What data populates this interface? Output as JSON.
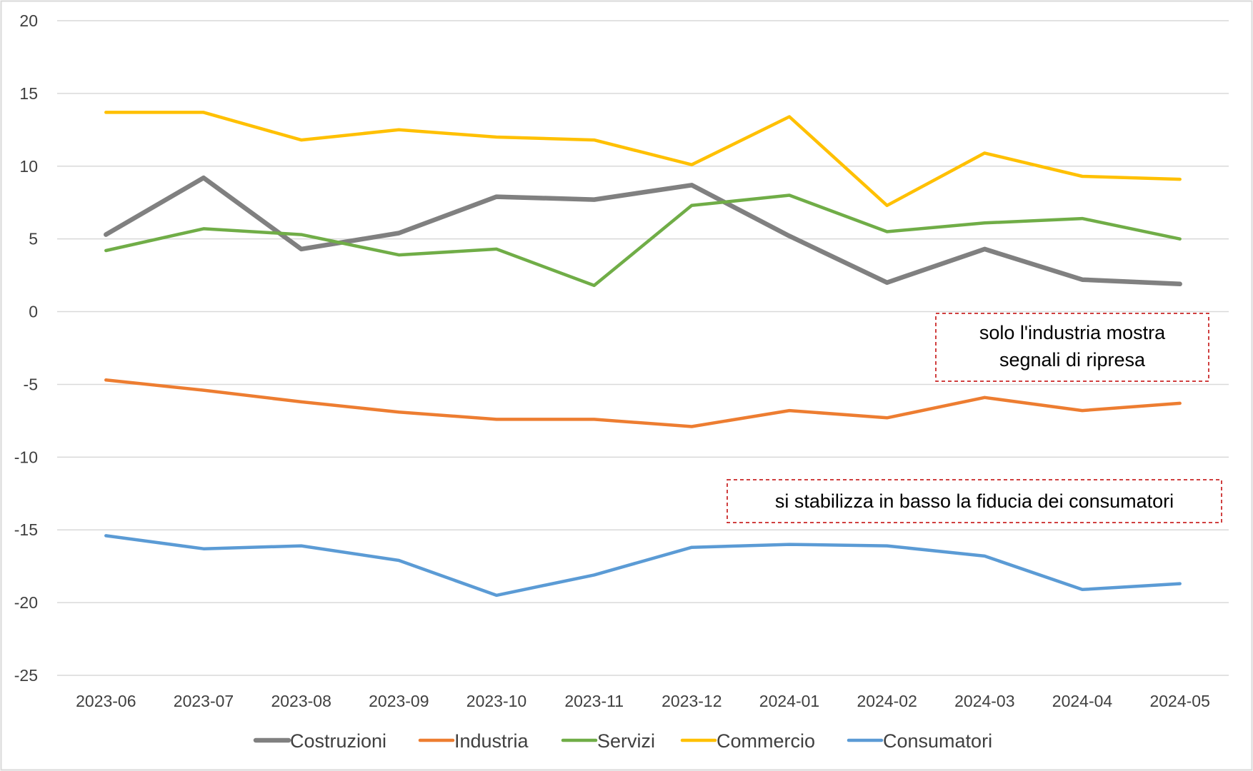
{
  "chart_data": {
    "type": "line",
    "title": "",
    "xlabel": "",
    "ylabel": "",
    "ylim": [
      -25,
      20
    ],
    "yticks": [
      "20",
      "15",
      "10",
      "5",
      "0",
      "-5",
      "-10",
      "-15",
      "-20",
      "-25"
    ],
    "ytick_values": [
      20,
      15,
      10,
      5,
      0,
      -5,
      -10,
      -15,
      -20,
      -25
    ],
    "grid": "horizontal",
    "legend_position": "bottom",
    "categories": [
      "2023-06",
      "2023-07",
      "2023-08",
      "2023-09",
      "2023-10",
      "2023-11",
      "2023-12",
      "2024-01",
      "2024-02",
      "2024-03",
      "2024-04",
      "2024-05"
    ],
    "series": [
      {
        "name": "Costruzioni",
        "color": "#808080",
        "values": [
          5.3,
          9.2,
          4.3,
          5.4,
          7.9,
          7.7,
          8.7,
          5.2,
          2.0,
          4.3,
          2.2,
          1.9
        ]
      },
      {
        "name": "Industria",
        "color": "#ED7D31",
        "values": [
          -4.7,
          -5.4,
          -6.2,
          -6.9,
          -7.4,
          -7.4,
          -7.9,
          -6.8,
          -7.3,
          -5.9,
          -6.8,
          -6.3
        ]
      },
      {
        "name": "Servizi",
        "color": "#70AD47",
        "values": [
          4.2,
          5.7,
          5.3,
          3.9,
          4.3,
          1.8,
          7.3,
          8.0,
          5.5,
          6.1,
          6.4,
          5.0
        ]
      },
      {
        "name": "Commercio",
        "color": "#FFC000",
        "values": [
          13.7,
          13.7,
          11.8,
          12.5,
          12.0,
          11.8,
          10.1,
          13.4,
          7.3,
          10.9,
          9.3,
          9.1
        ]
      },
      {
        "name": "Consumatori",
        "color": "#5B9BD5",
        "values": [
          -15.4,
          -16.3,
          -16.1,
          -17.1,
          -19.5,
          -18.1,
          -16.2,
          -16.0,
          -16.1,
          -16.8,
          -19.1,
          -18.7
        ]
      }
    ],
    "annotations": [
      {
        "lines": [
          "solo l'industria mostra",
          "segnali di ripresa"
        ],
        "border_color": "#C00000"
      },
      {
        "lines": [
          "si stabilizza in basso la fiducia dei consumatori"
        ],
        "border_color": "#C00000"
      }
    ]
  }
}
